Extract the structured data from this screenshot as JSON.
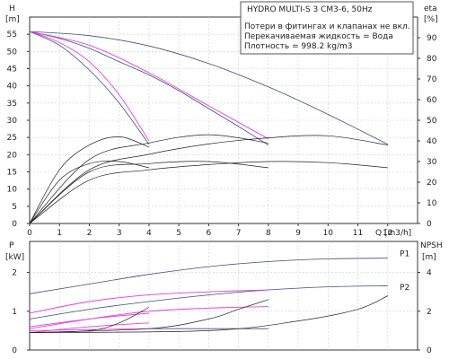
{
  "chart_data": [
    {
      "type": "line",
      "name": "pump-curves",
      "legend": {
        "title": "HYDRO MULTI-S 3 CM3-6, 50Hz",
        "lines": [
          "Потери в фитингах и клапанах не вкл.",
          "Перекачиваемая жидкость = Вода",
          "Плотность = 998.2 kg/m3"
        ]
      },
      "xlabel": "Q [m3/h]",
      "xlim": [
        0,
        13
      ],
      "xticks": [
        0,
        1,
        2,
        3,
        4,
        5,
        6,
        7,
        8,
        9,
        10,
        11,
        12
      ],
      "y_left": {
        "label_top": "H",
        "label_bottom": "[m]",
        "lim": [
          0,
          60
        ],
        "ticks": [
          0,
          5,
          10,
          15,
          20,
          25,
          30,
          35,
          40,
          45,
          50,
          55
        ]
      },
      "y_right": {
        "label_top": "eta",
        "label_bottom": "[%]",
        "lim": [
          0,
          100
        ],
        "ticks": [
          0,
          10,
          20,
          30,
          40,
          50,
          60,
          70,
          80,
          90
        ]
      },
      "colors": {
        "head": "#3b4f7a",
        "system": "#e040e0",
        "eff": "#222222"
      },
      "series": [
        {
          "kind": "head",
          "axis": "left",
          "points": [
            [
              0,
              55.8
            ],
            [
              2,
              54.6
            ],
            [
              4,
              51.6
            ],
            [
              6,
              46.5
            ],
            [
              8,
              39.7
            ],
            [
              10,
              31.7
            ],
            [
              12,
              23
            ]
          ]
        },
        {
          "kind": "head",
          "axis": "left",
          "points": [
            [
              0,
              55.8
            ],
            [
              1,
              53.8
            ],
            [
              2,
              50.9
            ],
            [
              3,
              47
            ],
            [
              4,
              43.2
            ],
            [
              5,
              38.6
            ],
            [
              6,
              33.4
            ],
            [
              7,
              28.2
            ],
            [
              8,
              22.8
            ]
          ]
        },
        {
          "kind": "head",
          "axis": "left",
          "points": [
            [
              0,
              55.8
            ],
            [
              1,
              51.8
            ],
            [
              2,
              44.6
            ],
            [
              3,
              35
            ],
            [
              4,
              23
            ]
          ]
        },
        {
          "kind": "system",
          "axis": "left",
          "points": [
            [
              0,
              55.8
            ],
            [
              2,
              51.8
            ],
            [
              4,
              43.8
            ],
            [
              6,
              34.2
            ],
            [
              8,
              24.6
            ]
          ]
        },
        {
          "kind": "system",
          "axis": "left",
          "points": [
            [
              0,
              55.8
            ],
            [
              1,
              52.6
            ],
            [
              2,
              47
            ],
            [
              3,
              37.4
            ],
            [
              4,
              24
            ]
          ]
        },
        {
          "kind": "eff",
          "axis": "right",
          "points": [
            [
              0,
              0
            ],
            [
              1,
              26
            ],
            [
              2,
              38
            ],
            [
              3,
              42
            ],
            [
              4,
              37
            ]
          ]
        },
        {
          "kind": "eff",
          "axis": "right",
          "points": [
            [
              0,
              0
            ],
            [
              1,
              21
            ],
            [
              2,
              29
            ],
            [
              3,
              30
            ],
            [
              4,
              27
            ]
          ]
        },
        {
          "kind": "eff",
          "axis": "right",
          "points": [
            [
              0,
              0
            ],
            [
              2,
              31
            ],
            [
              4,
              39
            ],
            [
              6,
              43
            ],
            [
              8,
              39
            ]
          ]
        },
        {
          "kind": "eff",
          "axis": "right",
          "points": [
            [
              0,
              0
            ],
            [
              2,
              25
            ],
            [
              4,
              29
            ],
            [
              6,
              30
            ],
            [
              8,
              27
            ]
          ]
        },
        {
          "kind": "eff",
          "axis": "right",
          "points": [
            [
              0,
              0
            ],
            [
              2,
              26
            ],
            [
              4,
              33.5
            ],
            [
              6,
              38.5
            ],
            [
              8,
              41.5
            ],
            [
              10,
              42.5
            ],
            [
              12,
              38
            ]
          ]
        },
        {
          "kind": "eff",
          "axis": "right",
          "points": [
            [
              0,
              0
            ],
            [
              2,
              21
            ],
            [
              4,
              26
            ],
            [
              6,
              28.5
            ],
            [
              8,
              30
            ],
            [
              10,
              29.5
            ],
            [
              12,
              27
            ]
          ]
        }
      ]
    },
    {
      "type": "line",
      "name": "power-npsh",
      "xlim": [
        0,
        13
      ],
      "y_left": {
        "label_top": "P",
        "label_bottom": "[kW]",
        "lim": [
          0,
          2.8
        ],
        "ticks": [
          0,
          1,
          2
        ]
      },
      "y_right": {
        "label_top": "NPSH",
        "label_bottom": "[m]",
        "lim": [
          0,
          5.6
        ],
        "ticks": [
          0,
          2,
          4
        ]
      },
      "series_labels": [
        {
          "text": "P1",
          "x": 12.4,
          "y": 2.42
        },
        {
          "text": "P2",
          "x": 12.4,
          "y": 1.55
        }
      ],
      "colors": {
        "power": "#3b4f7a",
        "system": "#e040e0",
        "npsh": "#222222"
      },
      "series": [
        {
          "kind": "power",
          "axis": "left",
          "points": [
            [
              0,
              1.45
            ],
            [
              2,
              1.7
            ],
            [
              4,
              1.95
            ],
            [
              6,
              2.15
            ],
            [
              8,
              2.28
            ],
            [
              10,
              2.35
            ],
            [
              12,
              2.37
            ]
          ]
        },
        {
          "kind": "power",
          "axis": "left",
          "points": [
            [
              0,
              0.8
            ],
            [
              2,
              1.05
            ],
            [
              4,
              1.25
            ],
            [
              6,
              1.42
            ],
            [
              8,
              1.55
            ],
            [
              10,
              1.63
            ],
            [
              12,
              1.66
            ]
          ]
        },
        {
          "kind": "system",
          "axis": "left",
          "points": [
            [
              0,
              0.95
            ],
            [
              2,
              1.25
            ],
            [
              4,
              1.42
            ],
            [
              6,
              1.5
            ],
            [
              8,
              1.55
            ]
          ]
        },
        {
          "kind": "system",
          "axis": "left",
          "points": [
            [
              0,
              0.55
            ],
            [
              2,
              0.8
            ],
            [
              4,
              1.0
            ],
            [
              6,
              1.08
            ],
            [
              8,
              1.12
            ]
          ]
        },
        {
          "kind": "system",
          "axis": "left",
          "points": [
            [
              0,
              0.6
            ],
            [
              2,
              0.8
            ],
            [
              4,
              0.95
            ]
          ]
        },
        {
          "kind": "system",
          "axis": "left",
          "points": [
            [
              0,
              0.45
            ],
            [
              2,
              0.6
            ],
            [
              4,
              0.7
            ]
          ]
        },
        {
          "kind": "system",
          "axis": "left",
          "points": [
            [
              0,
              0.5
            ],
            [
              4,
              0.55
            ]
          ]
        },
        {
          "kind": "power",
          "axis": "left",
          "points": [
            [
              4,
              0.55
            ],
            [
              8,
              0.55
            ]
          ]
        },
        {
          "kind": "npsh",
          "axis": "right",
          "points": [
            [
              0,
              0.9
            ],
            [
              2,
              1.0
            ],
            [
              3,
              1.4
            ],
            [
              4,
              2.2
            ]
          ]
        },
        {
          "kind": "npsh",
          "axis": "right",
          "points": [
            [
              0,
              0.9
            ],
            [
              4,
              1.1
            ],
            [
              6,
              1.6
            ],
            [
              7,
              2.1
            ],
            [
              8,
              2.6
            ]
          ]
        },
        {
          "kind": "npsh",
          "axis": "right",
          "points": [
            [
              0,
              0.9
            ],
            [
              6,
              1.0
            ],
            [
              9,
              1.5
            ],
            [
              11,
              2.1
            ],
            [
              12,
              2.8
            ]
          ]
        }
      ]
    }
  ]
}
